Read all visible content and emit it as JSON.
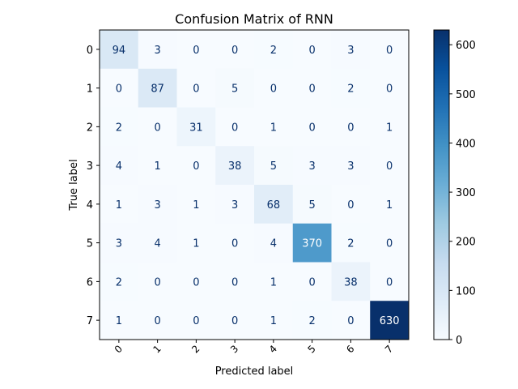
{
  "chart_data": {
    "type": "heatmap",
    "title": "Confusion Matrix of RNN",
    "xlabel": "Predicted label",
    "ylabel": "True label",
    "x_categories": [
      "0",
      "1",
      "2",
      "3",
      "4",
      "5",
      "6",
      "7"
    ],
    "y_categories": [
      "0",
      "1",
      "2",
      "3",
      "4",
      "5",
      "6",
      "7"
    ],
    "values": [
      [
        94,
        3,
        0,
        0,
        2,
        0,
        3,
        0
      ],
      [
        0,
        87,
        0,
        5,
        0,
        0,
        2,
        0
      ],
      [
        2,
        0,
        31,
        0,
        1,
        0,
        0,
        1
      ],
      [
        4,
        1,
        0,
        38,
        5,
        3,
        3,
        0
      ],
      [
        1,
        3,
        1,
        3,
        68,
        5,
        0,
        1
      ],
      [
        3,
        4,
        1,
        0,
        4,
        370,
        2,
        0
      ],
      [
        2,
        0,
        0,
        0,
        1,
        0,
        38,
        0
      ],
      [
        1,
        0,
        0,
        0,
        1,
        2,
        0,
        630
      ]
    ],
    "colormap": "Blues",
    "colorbar": {
      "range": [
        0,
        630
      ],
      "ticks": [
        0,
        100,
        200,
        300,
        400,
        500,
        600
      ]
    },
    "x_tick_rotation_deg": 45,
    "grid": false
  }
}
